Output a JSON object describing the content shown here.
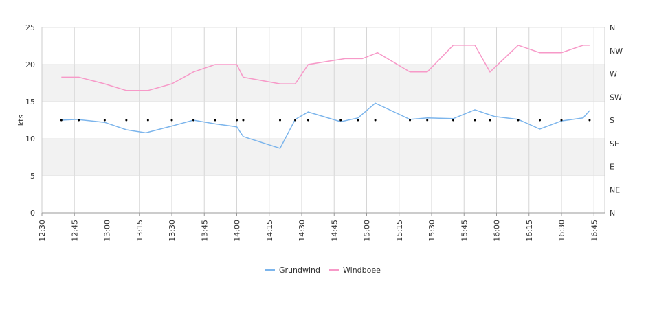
{
  "chart_data": {
    "type": "line",
    "ylabel": "kts",
    "ylim": [
      0,
      25
    ],
    "y_ticks": [
      0,
      5,
      10,
      15,
      20,
      25
    ],
    "y2_ticks": [
      "N",
      "NE",
      "E",
      "SE",
      "S",
      "SW",
      "W",
      "NW",
      "N"
    ],
    "x_range": [
      "12:30",
      "16:50"
    ],
    "x_ticks": [
      "12:30",
      "12:45",
      "13:00",
      "13:15",
      "13:30",
      "13:45",
      "14:00",
      "14:15",
      "14:30",
      "14:45",
      "15:00",
      "15:15",
      "15:30",
      "15:45",
      "16:00",
      "16:15",
      "16:30",
      "16:45"
    ],
    "shaded_bands": [
      [
        5,
        10
      ],
      [
        15,
        20
      ]
    ],
    "grid": true,
    "legend": "bottom",
    "series": [
      {
        "name": "Grundwind",
        "color": "#7cb5ec",
        "points": [
          [
            "12:39",
            12.5
          ],
          [
            "12:46",
            12.6
          ],
          [
            "12:59",
            12.2
          ],
          [
            "13:09",
            11.2
          ],
          [
            "13:18",
            10.8
          ],
          [
            "13:30",
            11.7
          ],
          [
            "13:40",
            12.5
          ],
          [
            "13:50",
            12.0
          ],
          [
            "14:00",
            11.6
          ],
          [
            "14:03",
            10.3
          ],
          [
            "14:20",
            8.7
          ],
          [
            "14:27",
            12.6
          ],
          [
            "14:33",
            13.6
          ],
          [
            "14:48",
            12.3
          ],
          [
            "14:56",
            12.8
          ],
          [
            "15:04",
            14.8
          ],
          [
            "15:20",
            12.6
          ],
          [
            "15:28",
            12.8
          ],
          [
            "15:40",
            12.7
          ],
          [
            "15:50",
            13.9
          ],
          [
            "15:59",
            13.0
          ],
          [
            "16:10",
            12.6
          ],
          [
            "16:20",
            11.3
          ],
          [
            "16:30",
            12.4
          ],
          [
            "16:40",
            12.8
          ],
          [
            "16:43",
            13.8
          ]
        ]
      },
      {
        "name": "Windboee",
        "color": "#f799c8",
        "points": [
          [
            "12:39",
            18.3
          ],
          [
            "12:47",
            18.3
          ],
          [
            "12:59",
            17.4
          ],
          [
            "13:09",
            16.5
          ],
          [
            "13:19",
            16.5
          ],
          [
            "13:30",
            17.4
          ],
          [
            "13:40",
            19.0
          ],
          [
            "13:50",
            20.0
          ],
          [
            "14:00",
            20.0
          ],
          [
            "14:03",
            18.3
          ],
          [
            "14:20",
            17.4
          ],
          [
            "14:27",
            17.4
          ],
          [
            "14:33",
            20.0
          ],
          [
            "14:50",
            20.8
          ],
          [
            "14:58",
            20.8
          ],
          [
            "15:05",
            21.6
          ],
          [
            "15:20",
            19.0
          ],
          [
            "15:28",
            19.0
          ],
          [
            "15:40",
            22.6
          ],
          [
            "15:50",
            22.6
          ],
          [
            "15:57",
            19.0
          ],
          [
            "16:10",
            22.6
          ],
          [
            "16:20",
            21.6
          ],
          [
            "16:30",
            21.6
          ],
          [
            "16:40",
            22.6
          ],
          [
            "16:43",
            22.6
          ]
        ]
      }
    ],
    "direction_markers": {
      "direction": "S",
      "times": [
        "12:39",
        "12:47",
        "12:59",
        "13:09",
        "13:19",
        "13:30",
        "13:40",
        "13:50",
        "14:00",
        "14:03",
        "14:20",
        "14:27",
        "14:33",
        "14:48",
        "14:56",
        "15:04",
        "15:20",
        "15:28",
        "15:40",
        "15:50",
        "15:57",
        "16:10",
        "16:20",
        "16:30",
        "16:43"
      ]
    }
  }
}
